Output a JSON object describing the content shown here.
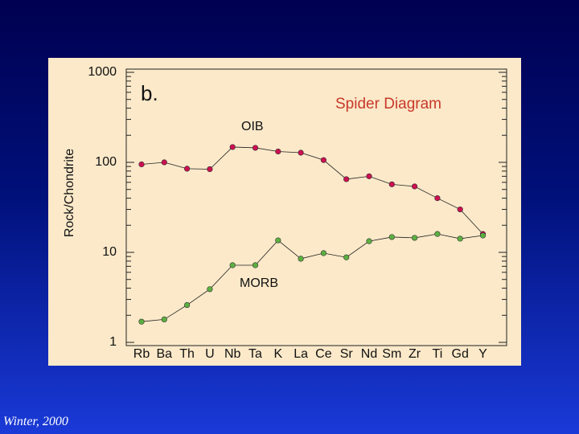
{
  "source": "Winter, 2000",
  "chart_data": {
    "type": "line",
    "panel_label": "b.",
    "title": "Spider Diagram",
    "title_color": "#c8382a",
    "y_label": "Rock/Chondrite",
    "log_y": true,
    "categories": [
      "Rb",
      "Ba",
      "Th",
      "U",
      "Nb",
      "Ta",
      "K",
      "La",
      "Ce",
      "Sr",
      "Nd",
      "Sm",
      "Zr",
      "Ti",
      "Gd",
      "Y"
    ],
    "series": [
      {
        "name": "OIB",
        "color": "#cc1050",
        "values": [
          95,
          100,
          85,
          84,
          148,
          145,
          132,
          128,
          106,
          65,
          70,
          57,
          54,
          40,
          30,
          16
        ]
      },
      {
        "name": "MORB",
        "color": "#5cb040",
        "values": [
          1.7,
          1.8,
          2.6,
          3.9,
          7.2,
          7.2,
          13.6,
          8.5,
          9.8,
          8.8,
          13.3,
          14.8,
          14.5,
          16,
          14.2,
          15.4
        ]
      }
    ],
    "ylim": [
      1,
      1000
    ],
    "yticks": [
      1,
      10,
      100,
      1000
    ],
    "minor_yticks": [
      2,
      3,
      4,
      5,
      6,
      7,
      8,
      9,
      20,
      30,
      40,
      50,
      60,
      70,
      80,
      90,
      200,
      300,
      400,
      500,
      600,
      700,
      800,
      900
    ]
  }
}
